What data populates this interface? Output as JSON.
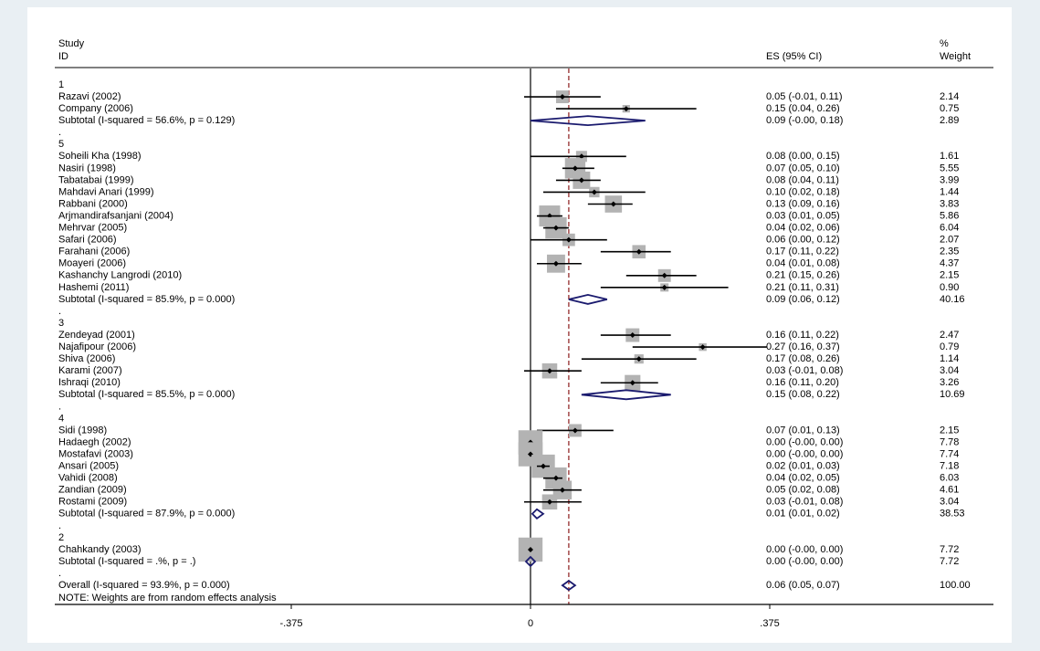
{
  "chart_data": {
    "type": "forest",
    "header": {
      "study": "Study",
      "id": "ID",
      "es": "ES (95% CI)",
      "weight_pct": "%",
      "weight": "Weight"
    },
    "xlim": [
      -0.625,
      0.625
    ],
    "xticks": [
      {
        "value": -0.375,
        "label": "-.375"
      },
      {
        "value": 0,
        "label": "0"
      },
      {
        "value": 0.375,
        "label": ".375"
      }
    ],
    "overall_line_value": 0.06,
    "rows": [
      {
        "kind": "group",
        "label": "1"
      },
      {
        "kind": "study",
        "label": "Razavi (2002)",
        "es": 0.05,
        "lo": -0.01,
        "hi": 0.11,
        "ci_text": "0.05 (-0.01, 0.11)",
        "weight": 2.14,
        "weight_text": "2.14"
      },
      {
        "kind": "study",
        "label": "Company (2006)",
        "es": 0.15,
        "lo": 0.04,
        "hi": 0.26,
        "ci_text": "0.15 (0.04, 0.26)",
        "weight": 0.75,
        "weight_text": "0.75"
      },
      {
        "kind": "subtotal",
        "label": "Subtotal  (I-squared = 56.6%, p = 0.129)",
        "es": 0.09,
        "lo": -0.0,
        "hi": 0.18,
        "ci_text": "0.09 (-0.00, 0.18)",
        "weight_text": "2.89"
      },
      {
        "kind": "dot",
        "label": "."
      },
      {
        "kind": "group",
        "label": "5"
      },
      {
        "kind": "study",
        "label": "Soheili Kha (1998)",
        "es": 0.08,
        "lo": 0.0,
        "hi": 0.15,
        "ci_text": "0.08 (0.00, 0.15)",
        "weight": 1.61,
        "weight_text": "1.61"
      },
      {
        "kind": "study",
        "label": "Nasiri (1998)",
        "es": 0.07,
        "lo": 0.05,
        "hi": 0.1,
        "ci_text": "0.07 (0.05, 0.10)",
        "weight": 5.55,
        "weight_text": "5.55"
      },
      {
        "kind": "study",
        "label": "Tabatabai (1999)",
        "es": 0.08,
        "lo": 0.04,
        "hi": 0.11,
        "ci_text": "0.08 (0.04, 0.11)",
        "weight": 3.99,
        "weight_text": "3.99"
      },
      {
        "kind": "study",
        "label": "Mahdavi Anari (1999)",
        "es": 0.1,
        "lo": 0.02,
        "hi": 0.18,
        "ci_text": "0.10 (0.02, 0.18)",
        "weight": 1.44,
        "weight_text": "1.44"
      },
      {
        "kind": "study",
        "label": "Rabbani (2000)",
        "es": 0.13,
        "lo": 0.09,
        "hi": 0.16,
        "ci_text": "0.13 (0.09, 0.16)",
        "weight": 3.83,
        "weight_text": "3.83"
      },
      {
        "kind": "study",
        "label": "Arjmandirafsanjani (2004)",
        "es": 0.03,
        "lo": 0.01,
        "hi": 0.05,
        "ci_text": "0.03 (0.01, 0.05)",
        "weight": 5.86,
        "weight_text": "5.86"
      },
      {
        "kind": "study",
        "label": "Mehrvar (2005)",
        "es": 0.04,
        "lo": 0.02,
        "hi": 0.06,
        "ci_text": "0.04 (0.02, 0.06)",
        "weight": 6.04,
        "weight_text": "6.04"
      },
      {
        "kind": "study",
        "label": "Safari (2006)",
        "es": 0.06,
        "lo": 0.0,
        "hi": 0.12,
        "ci_text": "0.06 (0.00, 0.12)",
        "weight": 2.07,
        "weight_text": "2.07"
      },
      {
        "kind": "study",
        "label": "Farahani (2006)",
        "es": 0.17,
        "lo": 0.11,
        "hi": 0.22,
        "ci_text": "0.17 (0.11, 0.22)",
        "weight": 2.35,
        "weight_text": "2.35"
      },
      {
        "kind": "study",
        "label": "Moayeri (2006)",
        "es": 0.04,
        "lo": 0.01,
        "hi": 0.08,
        "ci_text": "0.04 (0.01, 0.08)",
        "weight": 4.37,
        "weight_text": "4.37"
      },
      {
        "kind": "study",
        "label": "Kashanchy Langrodi (2010)",
        "es": 0.21,
        "lo": 0.15,
        "hi": 0.26,
        "ci_text": "0.21 (0.15, 0.26)",
        "weight": 2.15,
        "weight_text": "2.15"
      },
      {
        "kind": "study",
        "label": "Hashemi (2011)",
        "es": 0.21,
        "lo": 0.11,
        "hi": 0.31,
        "ci_text": "0.21 (0.11, 0.31)",
        "weight": 0.9,
        "weight_text": "0.90"
      },
      {
        "kind": "subtotal",
        "label": "Subtotal  (I-squared = 85.9%, p = 0.000)",
        "es": 0.09,
        "lo": 0.06,
        "hi": 0.12,
        "ci_text": "0.09 (0.06, 0.12)",
        "weight_text": "40.16"
      },
      {
        "kind": "dot",
        "label": "."
      },
      {
        "kind": "group",
        "label": "3"
      },
      {
        "kind": "study",
        "label": "Zendeyad (2001)",
        "es": 0.16,
        "lo": 0.11,
        "hi": 0.22,
        "ci_text": "0.16 (0.11, 0.22)",
        "weight": 2.47,
        "weight_text": "2.47"
      },
      {
        "kind": "study",
        "label": "Najafipour (2006)",
        "es": 0.27,
        "lo": 0.16,
        "hi": 0.37,
        "ci_text": "0.27 (0.16, 0.37)",
        "weight": 0.79,
        "weight_text": "0.79"
      },
      {
        "kind": "study",
        "label": "Shiva (2006)",
        "es": 0.17,
        "lo": 0.08,
        "hi": 0.26,
        "ci_text": "0.17 (0.08, 0.26)",
        "weight": 1.14,
        "weight_text": "1.14"
      },
      {
        "kind": "study",
        "label": "Karami (2007)",
        "es": 0.03,
        "lo": -0.01,
        "hi": 0.08,
        "ci_text": "0.03 (-0.01, 0.08)",
        "weight": 3.04,
        "weight_text": "3.04"
      },
      {
        "kind": "study",
        "label": "Ishraqi (2010)",
        "es": 0.16,
        "lo": 0.11,
        "hi": 0.2,
        "ci_text": "0.16 (0.11, 0.20)",
        "weight": 3.26,
        "weight_text": "3.26"
      },
      {
        "kind": "subtotal",
        "label": "Subtotal  (I-squared = 85.5%, p = 0.000)",
        "es": 0.15,
        "lo": 0.08,
        "hi": 0.22,
        "ci_text": "0.15 (0.08, 0.22)",
        "weight_text": "10.69"
      },
      {
        "kind": "dot",
        "label": "."
      },
      {
        "kind": "group",
        "label": "4"
      },
      {
        "kind": "study",
        "label": "Sidi (1998)",
        "es": 0.07,
        "lo": 0.01,
        "hi": 0.13,
        "ci_text": "0.07 (0.01, 0.13)",
        "weight": 2.15,
        "weight_text": "2.15"
      },
      {
        "kind": "study",
        "label": "Hadaegh (2002)",
        "es": 0.0,
        "lo": -0.0,
        "hi": 0.0,
        "ci_text": "0.00 (-0.00, 0.00)",
        "weight": 7.78,
        "weight_text": "7.78"
      },
      {
        "kind": "study",
        "label": "Mostafavi (2003)",
        "es": 0.0,
        "lo": -0.0,
        "hi": 0.0,
        "ci_text": "0.00 (-0.00, 0.00)",
        "weight": 7.74,
        "weight_text": "7.74"
      },
      {
        "kind": "study",
        "label": "Ansari (2005)",
        "es": 0.02,
        "lo": 0.01,
        "hi": 0.03,
        "ci_text": "0.02 (0.01, 0.03)",
        "weight": 7.18,
        "weight_text": "7.18"
      },
      {
        "kind": "study",
        "label": "Vahidi (2008)",
        "es": 0.04,
        "lo": 0.02,
        "hi": 0.05,
        "ci_text": "0.04 (0.02, 0.05)",
        "weight": 6.03,
        "weight_text": "6.03"
      },
      {
        "kind": "study",
        "label": "Zandian (2009)",
        "es": 0.05,
        "lo": 0.02,
        "hi": 0.08,
        "ci_text": "0.05 (0.02, 0.08)",
        "weight": 4.61,
        "weight_text": "4.61"
      },
      {
        "kind": "study",
        "label": "Rostami (2009)",
        "es": 0.03,
        "lo": -0.01,
        "hi": 0.08,
        "ci_text": "0.03 (-0.01, 0.08)",
        "weight": 3.04,
        "weight_text": "3.04"
      },
      {
        "kind": "subtotal",
        "label": "Subtotal  (I-squared = 87.9%, p = 0.000)",
        "es": 0.01,
        "lo": 0.01,
        "hi": 0.02,
        "ci_text": "0.01 (0.01, 0.02)",
        "weight_text": "38.53"
      },
      {
        "kind": "dot",
        "label": "."
      },
      {
        "kind": "group",
        "label": "2"
      },
      {
        "kind": "study",
        "label": "Chahkandy (2003)",
        "es": 0.0,
        "lo": -0.0,
        "hi": 0.0,
        "ci_text": "0.00 (-0.00, 0.00)",
        "weight": 7.72,
        "weight_text": "7.72"
      },
      {
        "kind": "subtotal",
        "label": "Subtotal  (I-squared = .%, p = .)",
        "es": 0.0,
        "lo": -0.0,
        "hi": 0.0,
        "ci_text": "0.00 (-0.00, 0.00)",
        "weight_text": "7.72"
      },
      {
        "kind": "dot",
        "label": "."
      },
      {
        "kind": "overall",
        "label": "Overall  (I-squared = 93.9%, p = 0.000)",
        "es": 0.06,
        "lo": 0.05,
        "hi": 0.07,
        "ci_text": "0.06 (0.05, 0.07)",
        "weight_text": "100.00"
      }
    ],
    "note": "NOTE: Weights are from random effects analysis",
    "colors": {
      "panel_bg": "#ffffff",
      "outer_bg": "#e9eff3",
      "weight_box": "#b3b3b3",
      "diamond": "#1a1a6e",
      "ref_line": "#8b1a1a",
      "ink": "#000000"
    }
  }
}
